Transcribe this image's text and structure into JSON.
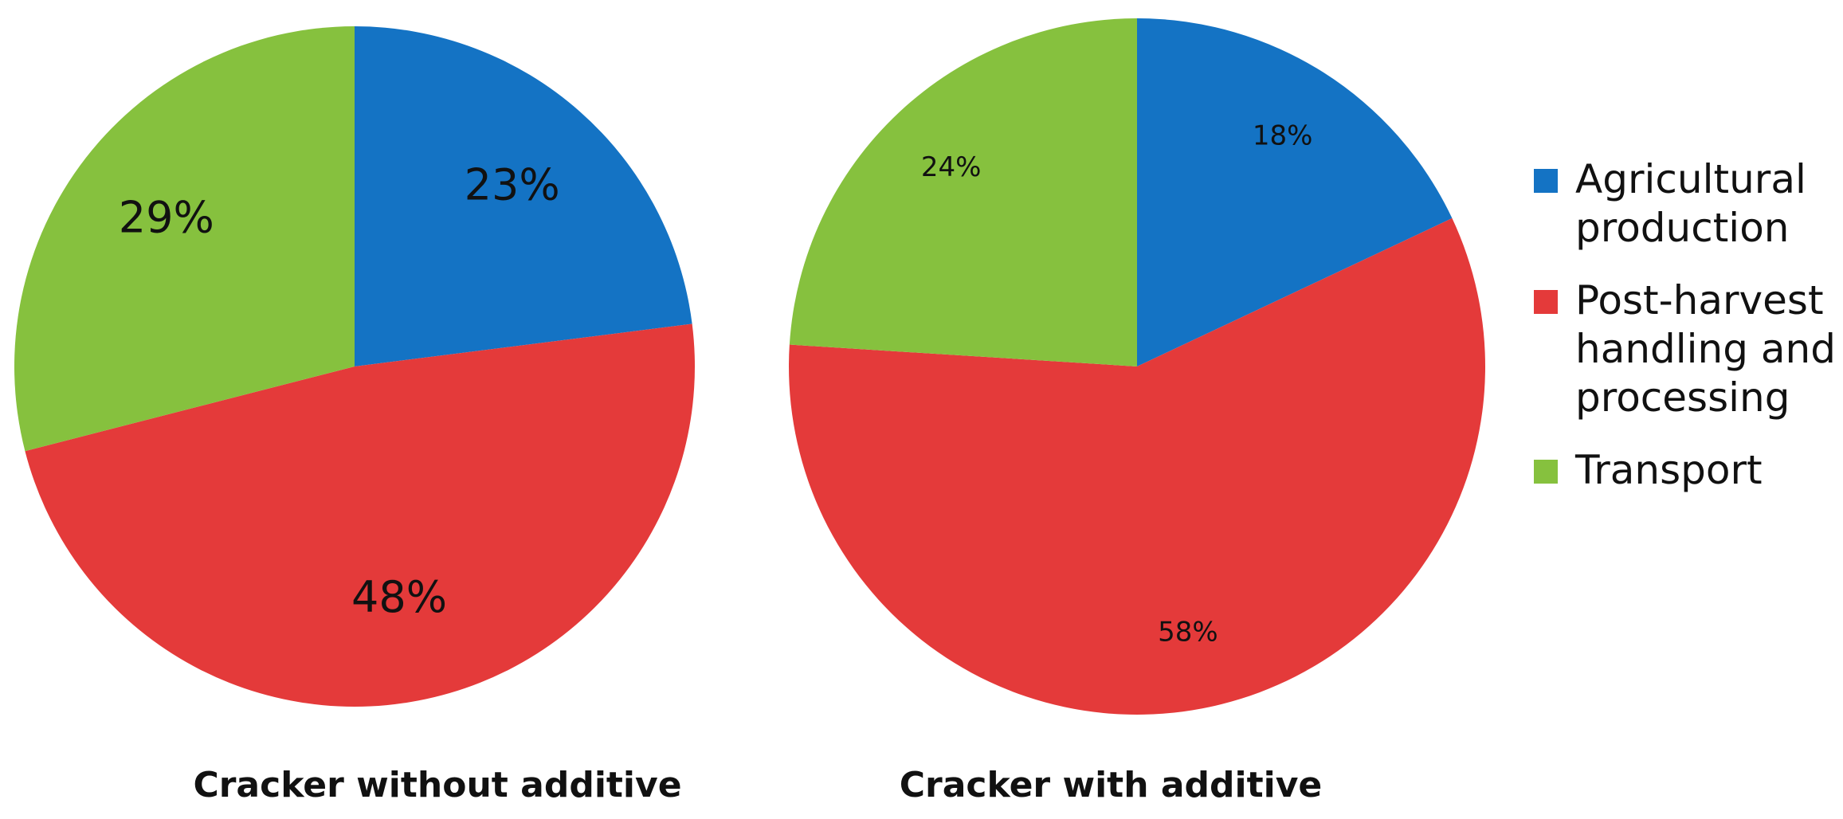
{
  "chart_data": [
    {
      "type": "pie",
      "title": "Cracker without additive",
      "categories": [
        "Agricultural production",
        "Post-harvest handling and processing",
        "Transport"
      ],
      "values": [
        23,
        48,
        29
      ],
      "value_labels": [
        "23%",
        "48%",
        "29%"
      ],
      "colors": [
        "#1473c4",
        "#e43a3a",
        "#86c13e"
      ]
    },
    {
      "type": "pie",
      "title": "Cracker with additive",
      "categories": [
        "Agricultural production",
        "Post-harvest handling and processing",
        "Transport"
      ],
      "values": [
        18,
        58,
        24
      ],
      "value_labels": [
        "18%",
        "58%",
        "24%"
      ],
      "colors": [
        "#1473c4",
        "#e43a3a",
        "#86c13e"
      ]
    }
  ]
}
